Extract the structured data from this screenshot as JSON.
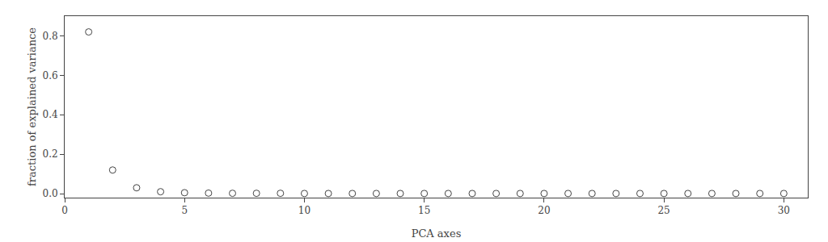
{
  "chart_data": {
    "type": "scatter",
    "x": [
      1,
      2,
      3,
      4,
      5,
      6,
      7,
      8,
      9,
      10,
      11,
      12,
      13,
      14,
      15,
      16,
      17,
      18,
      19,
      20,
      21,
      22,
      23,
      24,
      25,
      26,
      27,
      28,
      29,
      30
    ],
    "values": [
      0.82,
      0.12,
      0.03,
      0.01,
      0.005,
      0.003,
      0.002,
      0.002,
      0.002,
      0.001,
      0.001,
      0.001,
      0.001,
      0.001,
      0.001,
      0.001,
      0.001,
      0.001,
      0.001,
      0.001,
      0.001,
      0.001,
      0.001,
      0.001,
      0.001,
      0.001,
      0.001,
      0.001,
      0.001,
      0.001
    ],
    "xlabel": "PCA axes",
    "ylabel": "fraction of explained variance",
    "xlim": [
      0,
      31
    ],
    "ylim": [
      -0.02,
      0.9
    ],
    "xticks": [
      0,
      5,
      10,
      15,
      20,
      25,
      30
    ],
    "yticks": [
      {
        "value": 0,
        "label": "0.0"
      },
      0.2,
      0.4,
      0.6,
      0.8
    ],
    "marker": "circle-open",
    "color": "#444444",
    "grid": false
  }
}
